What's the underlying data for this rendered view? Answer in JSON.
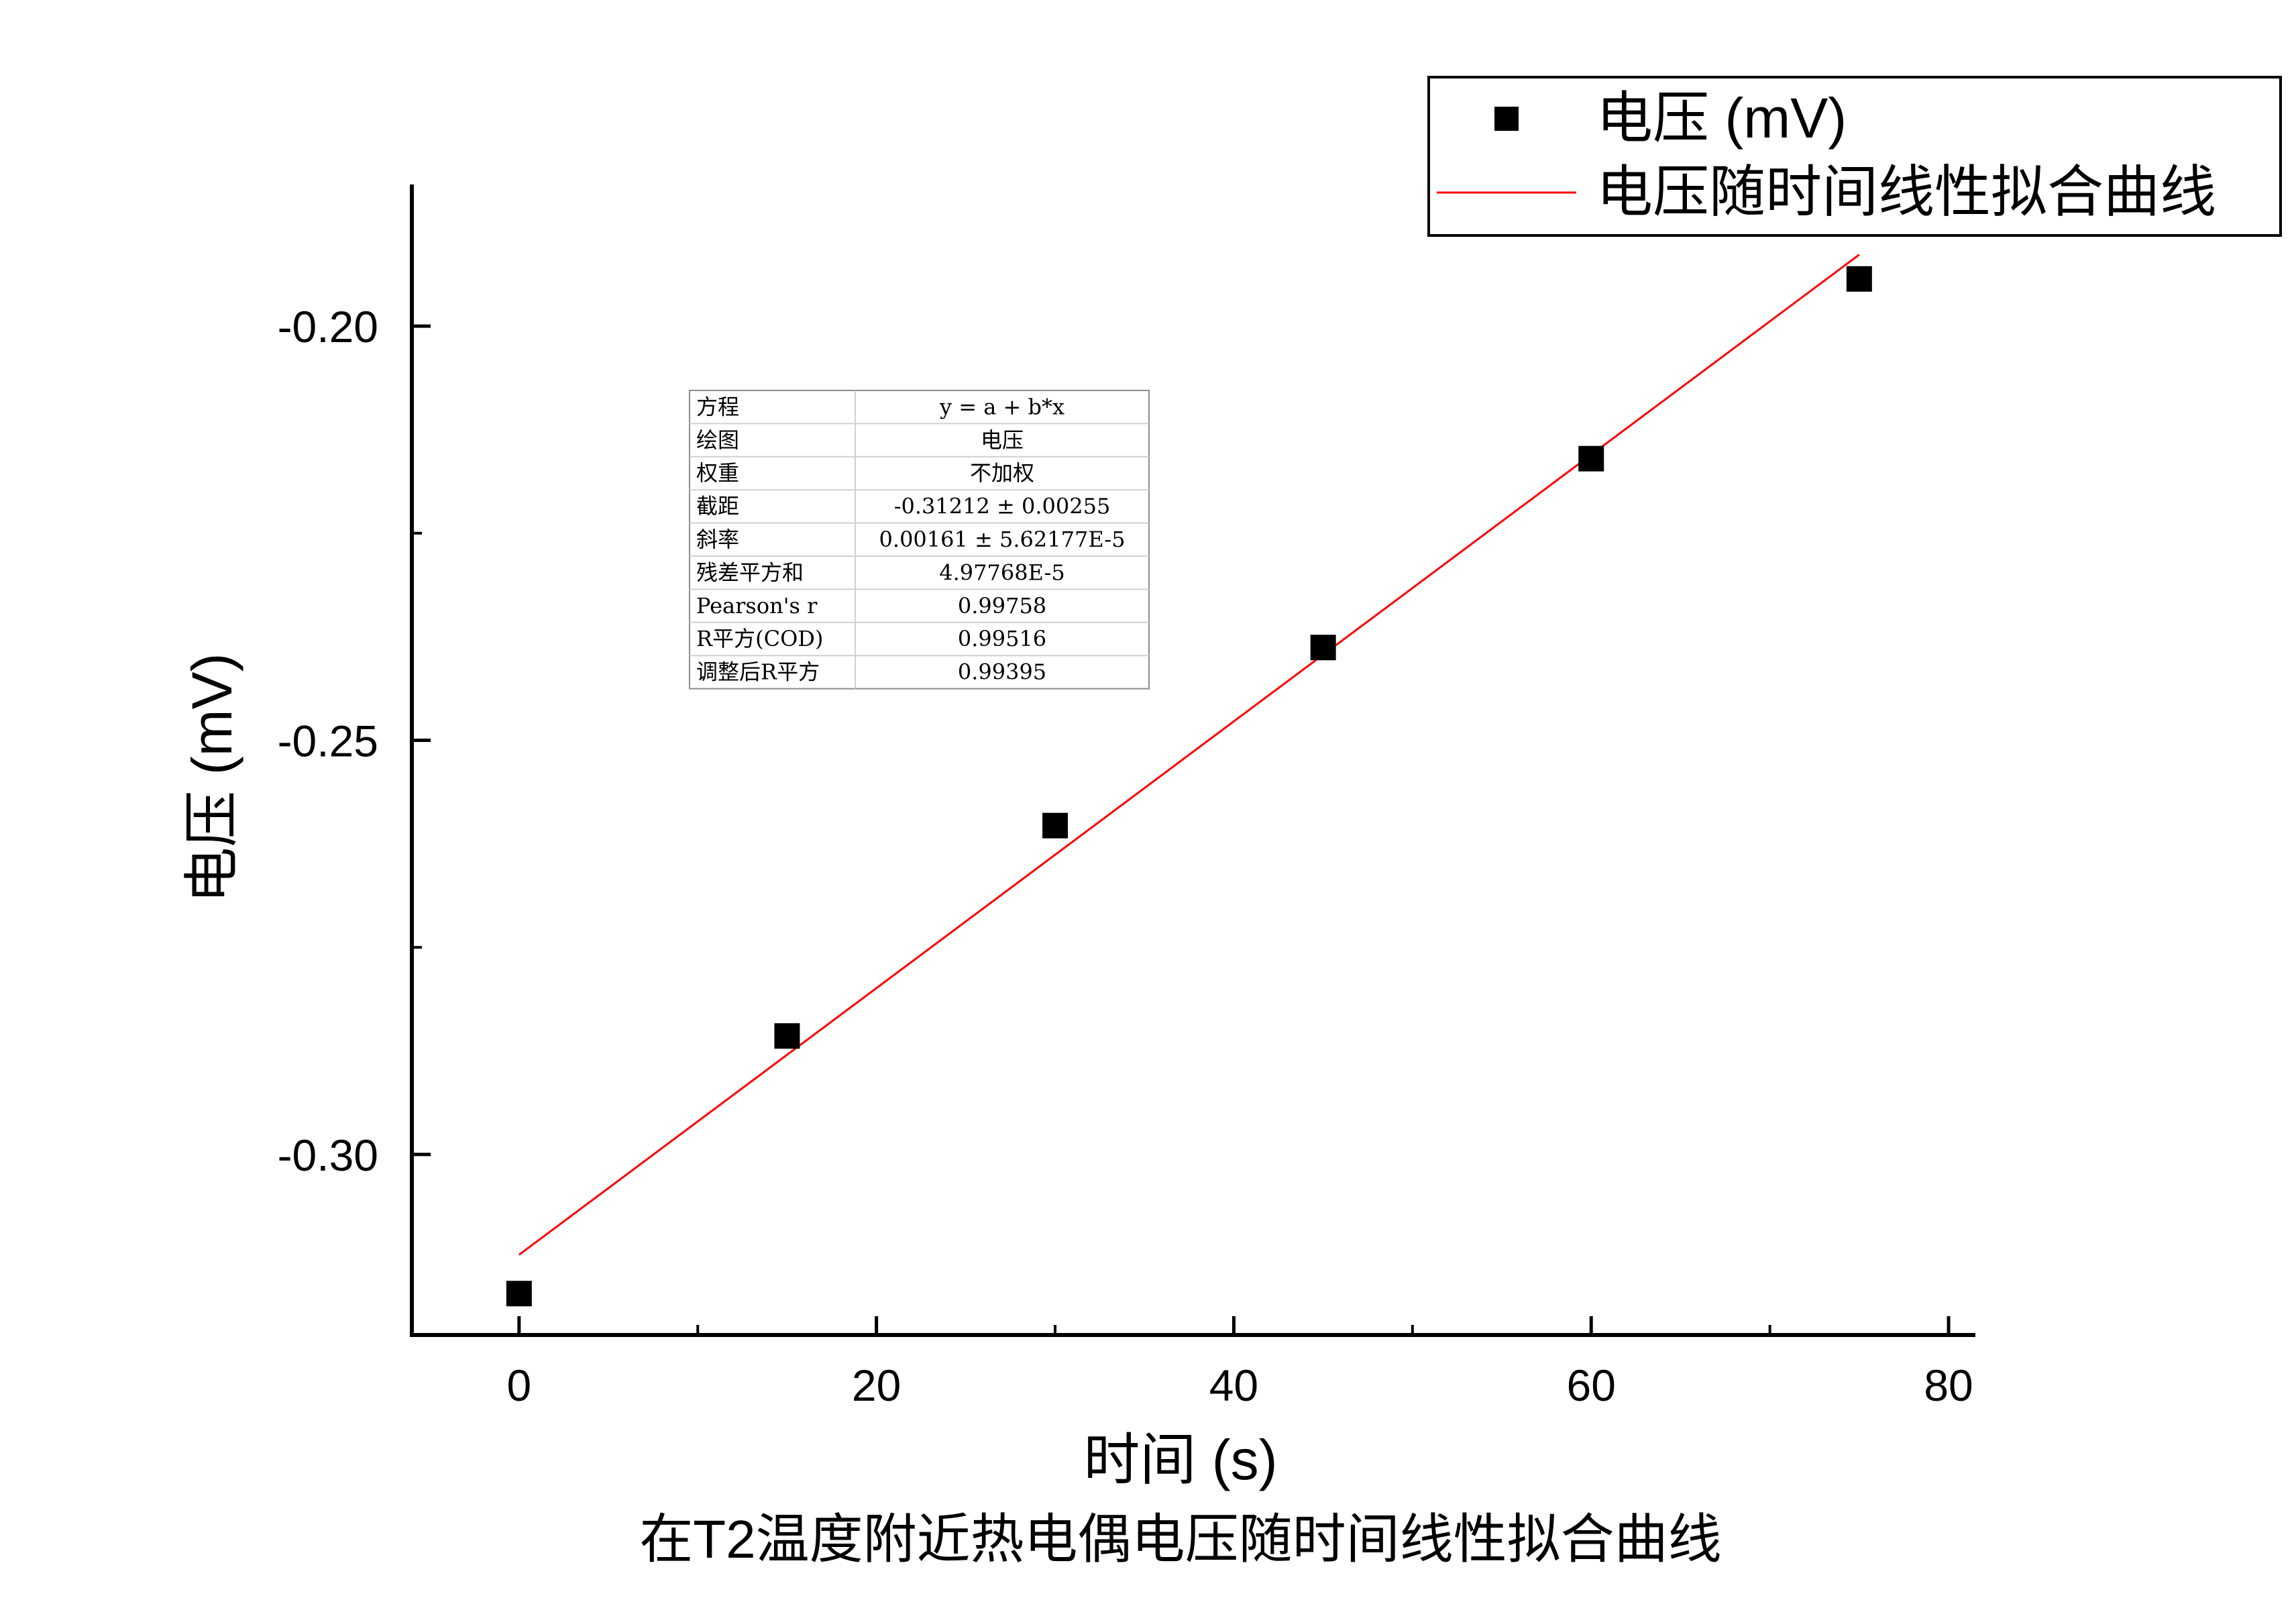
{
  "chart_data": {
    "type": "scatter",
    "title": "在T2温度附近热电偶电压随时间线性拟合曲线",
    "xlabel": "时间 (s)",
    "ylabel": "电压 (mV)",
    "xlim": [
      -6,
      81.5
    ],
    "ylim": [
      -0.3218,
      -0.1829
    ],
    "x_ticks": [
      0,
      20,
      40,
      60,
      80
    ],
    "x_tick_labels": [
      "0",
      "20",
      "40",
      "60",
      "80"
    ],
    "y_ticks": [
      -0.3,
      -0.25,
      -0.2
    ],
    "y_tick_labels": [
      "-0.30",
      "-0.25",
      "-0.20"
    ],
    "grid": false,
    "legend_position": "top-right",
    "series": [
      {
        "name": "电压 (mV)",
        "kind": "scatter",
        "marker": "square",
        "color": "#000000",
        "x": [
          0,
          15,
          30,
          45,
          60,
          75
        ],
        "y": [
          -0.3168,
          -0.2857,
          -0.2603,
          -0.2388,
          -0.216,
          -0.1943
        ]
      },
      {
        "name": "电压随时间线性拟合曲线",
        "kind": "line",
        "color": "#ff0000",
        "intercept": -0.31212,
        "slope": 0.00161,
        "x_range": [
          0,
          75
        ]
      }
    ],
    "stats_table": [
      [
        "方程",
        "y = a + b*x"
      ],
      [
        "绘图",
        "电压"
      ],
      [
        "权重",
        "不加权"
      ],
      [
        "截距",
        "-0.31212 ± 0.00255"
      ],
      [
        "斜率",
        "0.00161 ± 5.62177E-5"
      ],
      [
        "残差平方和",
        "4.97768E-5"
      ],
      [
        "Pearson's r",
        "0.99758"
      ],
      [
        "R平方(COD)",
        "0.99516"
      ],
      [
        "调整后R平方",
        "0.99395"
      ]
    ]
  }
}
